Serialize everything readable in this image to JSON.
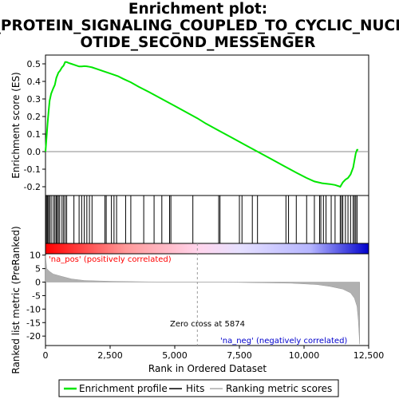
{
  "chart_data": {
    "type": "line",
    "title_lines": [
      "Enrichment plot:",
      "G_PROTEIN_SIGNALING_COUPLED_TO_CYCLIC_NUCLE",
      "OTIDE_SECOND_MESSENGER"
    ],
    "es_panel": {
      "ylabel": "Enrichment score (ES)",
      "ylim": [
        -0.25,
        0.55
      ],
      "yticks": [
        -0.2,
        -0.1,
        0.0,
        0.1,
        0.2,
        0.3,
        0.4,
        0.5
      ],
      "ytick_labels": [
        "-0.2",
        "-0.1",
        "0.0",
        "0.1",
        "0.2",
        "0.3",
        "0.4",
        "0.5"
      ],
      "line_color": "#00e600",
      "series": [
        {
          "x": [
            0,
            40,
            80,
            120,
            160,
            220,
            300,
            360,
            420,
            500,
            560,
            640,
            700,
            760,
            820,
            900,
            1000,
            1100,
            1200,
            1300,
            1400,
            1500,
            1600,
            1700,
            1800,
            2000,
            2200,
            2500,
            2800,
            3000,
            3300,
            3600,
            4000,
            4500,
            5000,
            5500,
            5874,
            6200,
            6700,
            7200,
            7700,
            8200,
            8700,
            9200,
            9700,
            10100,
            10400,
            10700,
            11000,
            11200,
            11400,
            11500,
            11600,
            11700,
            11800,
            11900,
            11950,
            12000,
            12050,
            12100
          ],
          "y": [
            0.0,
            0.08,
            0.16,
            0.23,
            0.29,
            0.33,
            0.36,
            0.38,
            0.42,
            0.45,
            0.46,
            0.48,
            0.49,
            0.51,
            0.51,
            0.505,
            0.5,
            0.495,
            0.49,
            0.485,
            0.485,
            0.487,
            0.486,
            0.483,
            0.48,
            0.47,
            0.46,
            0.445,
            0.43,
            0.415,
            0.395,
            0.37,
            0.34,
            0.3,
            0.26,
            0.22,
            0.19,
            0.16,
            0.12,
            0.08,
            0.04,
            0.0,
            -0.04,
            -0.08,
            -0.12,
            -0.15,
            -0.17,
            -0.18,
            -0.185,
            -0.19,
            -0.2,
            -0.175,
            -0.16,
            -0.15,
            -0.13,
            -0.09,
            -0.05,
            -0.01,
            0.01,
            0.01
          ]
        }
      ]
    },
    "hits": [
      10,
      40,
      80,
      120,
      160,
      220,
      300,
      360,
      410,
      450,
      500,
      550,
      640,
      700,
      760,
      820,
      1100,
      1300,
      1400,
      1500,
      1600,
      1700,
      1800,
      2300,
      2350,
      2550,
      2650,
      2750,
      3100,
      3300,
      3800,
      4200,
      4500,
      4800,
      4850,
      5700,
      6700,
      6750,
      7500,
      7600,
      8000,
      8200,
      9300,
      9400,
      9700,
      10100,
      10400,
      10600,
      10650,
      10750,
      10850,
      11050,
      11200,
      11400,
      11450,
      11500,
      11600,
      11700,
      11800,
      11900,
      11950,
      12000,
      12050
    ],
    "rank_panel": {
      "xlabel": "Rank in Ordered Dataset",
      "ylabel": "Ranked list metric (PreRanked)",
      "xlim": [
        0,
        12500
      ],
      "ylim": [
        -23.5,
        10.5
      ],
      "xticks": [
        0,
        2500,
        5000,
        7500,
        10000,
        12500
      ],
      "xtick_labels": [
        "0",
        "2,500",
        "5,000",
        "7,500",
        "10,000",
        "12,500"
      ],
      "yticks": [
        -20,
        -15,
        -10,
        -5,
        0,
        5,
        10
      ],
      "ytick_labels": [
        "-20",
        "-15",
        "-10",
        "-5",
        "0",
        "5",
        "10"
      ],
      "metric_x": [
        0,
        50,
        150,
        300,
        600,
        1000,
        1500,
        2500,
        4000,
        5874,
        7500,
        9500,
        10500,
        11000,
        11500,
        11800,
        11950,
        12050,
        12100,
        12150
      ],
      "metric_y": [
        10,
        5,
        4,
        3,
        2.2,
        1.2,
        0.6,
        0.3,
        0.1,
        0,
        -0.1,
        -0.4,
        -0.9,
        -1.6,
        -2.6,
        -4,
        -6,
        -9,
        -14,
        -23
      ],
      "zero_cross": 5874,
      "zero_cross_label": "Zero cross at 5874",
      "pos_label": "'na_pos' (positively correlated)",
      "neg_label": "'na_neg' (negatively correlated)",
      "pos_color": "#ff0000",
      "neg_color": "#0000cc"
    },
    "legend": [
      {
        "label": "Enrichment profile",
        "color": "#00e600"
      },
      {
        "label": "Hits",
        "color": "#000000"
      },
      {
        "label": "Ranking metric scores",
        "color": "#aaaaaa"
      }
    ]
  }
}
